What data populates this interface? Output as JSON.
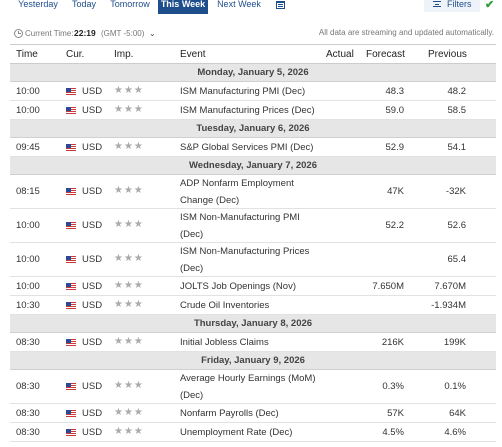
{
  "tabs": [
    "Yesterday",
    "Today",
    "Tomorrow",
    "This Week",
    "Next Week"
  ],
  "active_tab": "This Week",
  "filters_label": "Filters",
  "current_time": {
    "label": "Current Time:",
    "time": "22:19",
    "zone": "(GMT -5:00)"
  },
  "streaming_note": "All data are streaming and updated automatically.",
  "columns": {
    "time": "Time",
    "cur": "Cur.",
    "imp": "Imp.",
    "event": "Event",
    "actual": "Actual",
    "forecast": "Forecast",
    "previous": "Previous"
  },
  "colors": {
    "accent": "#1f4e8c",
    "day_header_bg": "#e6e6e6",
    "check": "#2e9e3a"
  },
  "days": [
    {
      "label": "Monday, January 5, 2026",
      "events": [
        {
          "time": "10:00",
          "currency": "USD",
          "importance": "★★★",
          "event": "ISM Manufacturing PMI (Dec)",
          "actual": "",
          "forecast": "48.3",
          "previous": "48.2"
        },
        {
          "time": "10:00",
          "currency": "USD",
          "importance": "★★★",
          "event": "ISM Manufacturing Prices (Dec)",
          "actual": "",
          "forecast": "59.0",
          "previous": "58.5"
        }
      ]
    },
    {
      "label": "Tuesday, January 6, 2026",
      "events": [
        {
          "time": "09:45",
          "currency": "USD",
          "importance": "★★★",
          "event": "S&P Global Services PMI (Dec)",
          "actual": "",
          "forecast": "52.9",
          "previous": "54.1"
        }
      ]
    },
    {
      "label": "Wednesday, January 7, 2026",
      "events": [
        {
          "time": "08:15",
          "currency": "USD",
          "importance": "★★★",
          "event": "ADP Nonfarm Employment Change (Dec)",
          "actual": "",
          "forecast": "47K",
          "previous": "-32K"
        },
        {
          "time": "10:00",
          "currency": "USD",
          "importance": "★★★",
          "event": "ISM Non-Manufacturing PMI (Dec)",
          "actual": "",
          "forecast": "52.2",
          "previous": "52.6"
        },
        {
          "time": "10:00",
          "currency": "USD",
          "importance": "★★★",
          "event": "ISM Non-Manufacturing Prices (Dec)",
          "actual": "",
          "forecast": "",
          "previous": "65.4"
        },
        {
          "time": "10:00",
          "currency": "USD",
          "importance": "★★★",
          "event": "JOLTS Job Openings (Nov)",
          "actual": "",
          "forecast": "7.650M",
          "previous": "7.670M"
        },
        {
          "time": "10:30",
          "currency": "USD",
          "importance": "★★★",
          "event": "Crude Oil Inventories",
          "actual": "",
          "forecast": "",
          "previous": "-1.934M"
        }
      ]
    },
    {
      "label": "Thursday, January 8, 2026",
      "events": [
        {
          "time": "08:30",
          "currency": "USD",
          "importance": "★★★",
          "event": "Initial Jobless Claims",
          "actual": "",
          "forecast": "216K",
          "previous": "199K"
        }
      ]
    },
    {
      "label": "Friday, January 9, 2026",
      "events": [
        {
          "time": "08:30",
          "currency": "USD",
          "importance": "★★★",
          "event": "Average Hourly Earnings (MoM) (Dec)",
          "actual": "",
          "forecast": "0.3%",
          "previous": "0.1%"
        },
        {
          "time": "08:30",
          "currency": "USD",
          "importance": "★★★",
          "event": "Nonfarm Payrolls (Dec)",
          "actual": "",
          "forecast": "57K",
          "previous": "64K"
        },
        {
          "time": "08:30",
          "currency": "USD",
          "importance": "★★★",
          "event": "Unemployment Rate (Dec)",
          "actual": "",
          "forecast": "4.5%",
          "previous": "4.6%"
        }
      ]
    }
  ]
}
